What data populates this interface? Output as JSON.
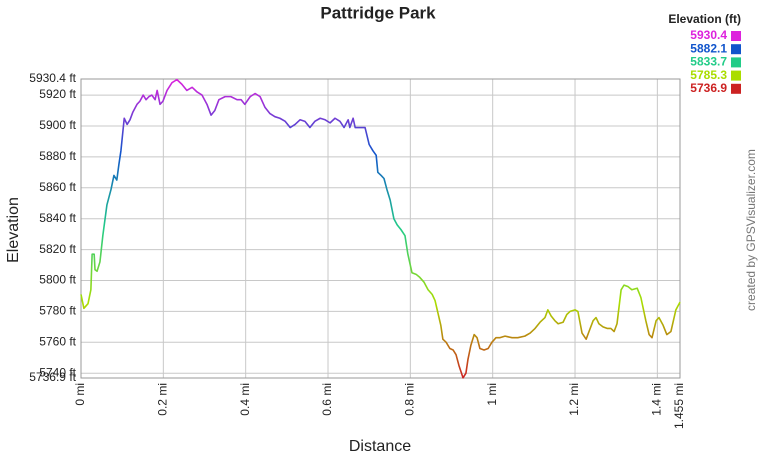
{
  "chart_data": {
    "type": "line",
    "title": "Pattridge Park",
    "x_label": "Distance",
    "y_label": "Elevation",
    "credit": "created by GPSVisualizer.com",
    "grid": true,
    "legend": {
      "title": "Elevation (ft)",
      "items": [
        {
          "value": 5930.4,
          "color": "#dd22dd"
        },
        {
          "value": 5882.1,
          "color": "#1155cc"
        },
        {
          "value": 5833.7,
          "color": "#22cc88"
        },
        {
          "value": 5785.3,
          "color": "#aadd00"
        },
        {
          "value": 5736.9,
          "color": "#cc2222"
        }
      ]
    },
    "xlim": [
      0,
      1.455
    ],
    "ylim": [
      5736.9,
      5930.4
    ],
    "xticks": [
      {
        "value": 0,
        "label": "0 mi"
      },
      {
        "value": 0.2,
        "label": "0.2 mi"
      },
      {
        "value": 0.4,
        "label": "0.4 mi"
      },
      {
        "value": 0.6,
        "label": "0.6 mi"
      },
      {
        "value": 0.8,
        "label": "0.8 mi"
      },
      {
        "value": 1,
        "label": "1 mi"
      },
      {
        "value": 1.2,
        "label": "1.2 mi"
      },
      {
        "value": 1.4,
        "label": "1.4 mi"
      },
      {
        "value": 1.455,
        "label": "1.455 mi"
      }
    ],
    "yticks": [
      {
        "value": 5736.9,
        "label": "5736.9 ft"
      },
      {
        "value": 5740,
        "label": "5740 ft"
      },
      {
        "value": 5760,
        "label": "5760 ft"
      },
      {
        "value": 5780,
        "label": "5780 ft"
      },
      {
        "value": 5800,
        "label": "5800 ft"
      },
      {
        "value": 5820,
        "label": "5820 ft"
      },
      {
        "value": 5840,
        "label": "5840 ft"
      },
      {
        "value": 5860,
        "label": "5860 ft"
      },
      {
        "value": 5880,
        "label": "5880 ft"
      },
      {
        "value": 5900,
        "label": "5900 ft"
      },
      {
        "value": 5920,
        "label": "5920 ft"
      },
      {
        "value": 5930.4,
        "label": "5930.4 ft"
      }
    ],
    "x": [
      0,
      0.007,
      0.017,
      0.024,
      0.027,
      0.032,
      0.034,
      0.039,
      0.046,
      0.053,
      0.063,
      0.073,
      0.08,
      0.087,
      0.092,
      0.097,
      0.105,
      0.112,
      0.119,
      0.126,
      0.136,
      0.143,
      0.151,
      0.158,
      0.165,
      0.172,
      0.18,
      0.185,
      0.192,
      0.199,
      0.209,
      0.221,
      0.233,
      0.245,
      0.257,
      0.27,
      0.282,
      0.294,
      0.306,
      0.316,
      0.325,
      0.335,
      0.35,
      0.364,
      0.379,
      0.389,
      0.398,
      0.411,
      0.423,
      0.435,
      0.447,
      0.459,
      0.471,
      0.483,
      0.496,
      0.508,
      0.52,
      0.532,
      0.544,
      0.556,
      0.568,
      0.581,
      0.593,
      0.605,
      0.617,
      0.629,
      0.639,
      0.649,
      0.653,
      0.661,
      0.666,
      0.678,
      0.69,
      0.7,
      0.709,
      0.717,
      0.721,
      0.729,
      0.736,
      0.743,
      0.751,
      0.76,
      0.768,
      0.777,
      0.787,
      0.794,
      0.804,
      0.814,
      0.823,
      0.833,
      0.843,
      0.853,
      0.86,
      0.867,
      0.874,
      0.879,
      0.887,
      0.896,
      0.904,
      0.911,
      0.918,
      0.923,
      0.928,
      0.935,
      0.94,
      0.947,
      0.955,
      0.962,
      0.969,
      0.979,
      0.989,
      0.998,
      1.008,
      1.018,
      1.03,
      1.047,
      1.061,
      1.078,
      1.091,
      1.103,
      1.115,
      1.127,
      1.134,
      1.142,
      1.151,
      1.159,
      1.171,
      1.18,
      1.188,
      1.2,
      1.207,
      1.217,
      1.227,
      1.234,
      1.244,
      1.251,
      1.258,
      1.268,
      1.278,
      1.287,
      1.295,
      1.302,
      1.312,
      1.319,
      1.329,
      1.338,
      1.351,
      1.36,
      1.372,
      1.38,
      1.387,
      1.397,
      1.404,
      1.414,
      1.423,
      1.433,
      1.445,
      1.455
    ],
    "values": [
      5791,
      5782,
      5785,
      5794,
      5817,
      5817,
      5807,
      5806,
      5812,
      5829,
      5849,
      5859,
      5868,
      5865,
      5875,
      5884,
      5905,
      5901,
      5904,
      5909,
      5914,
      5916,
      5920,
      5917,
      5919,
      5920,
      5917,
      5923,
      5914,
      5916,
      5923,
      5928,
      5930,
      5927,
      5923,
      5925,
      5922,
      5920,
      5914,
      5907,
      5910,
      5917,
      5919,
      5919,
      5917,
      5917,
      5914,
      5919,
      5921,
      5919,
      5912,
      5908,
      5906,
      5905,
      5903,
      5899,
      5901,
      5904,
      5903,
      5899,
      5903,
      5905,
      5904,
      5902,
      5905,
      5903,
      5899,
      5904,
      5899,
      5905,
      5899,
      5899,
      5899,
      5888,
      5884,
      5881,
      5870,
      5868,
      5866,
      5859,
      5852,
      5840,
      5836,
      5833,
      5829,
      5817,
      5805,
      5804,
      5802,
      5799,
      5794,
      5791,
      5787,
      5779,
      5771,
      5762,
      5760,
      5756,
      5755,
      5752,
      5745,
      5741,
      5737,
      5740,
      5749,
      5758,
      5765,
      5763,
      5756,
      5755,
      5756,
      5760,
      5763,
      5763,
      5764,
      5763,
      5763,
      5764,
      5766,
      5769,
      5773,
      5776,
      5781,
      5777,
      5774,
      5772,
      5773,
      5778,
      5780,
      5781,
      5780,
      5766,
      5762,
      5767,
      5774,
      5776,
      5772,
      5770,
      5769,
      5769,
      5767,
      5772,
      5794,
      5797,
      5796,
      5794,
      5795,
      5789,
      5774,
      5765,
      5763,
      5774,
      5776,
      5771,
      5765,
      5767,
      5781,
      5786
    ]
  }
}
